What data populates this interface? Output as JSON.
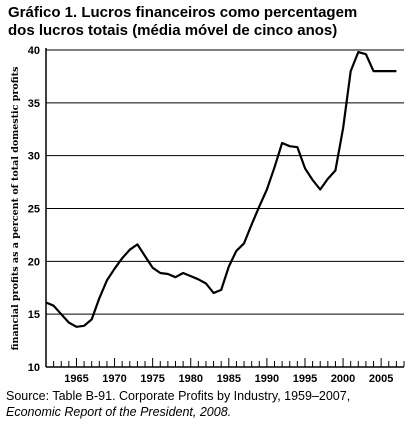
{
  "title_lines": [
    "Gráfico 1.  Lucros financeiros como percentagem",
    "dos lucros totais (média móvel de cinco anos)"
  ],
  "source_lines": [
    "Source: Table B-91. Corporate Profits by Industry, 1959–2007,",
    "Economic Report of the President, 2008."
  ],
  "chart_data": {
    "type": "line",
    "title": "Gráfico 1.  Lucros financeiros como percentagem dos lucros totais (média móvel de cinco anos)",
    "xlabel": "",
    "ylabel": "financial profits as a percent of total domestic profits",
    "xlim": [
      1961,
      2008
    ],
    "ylim": [
      10,
      40
    ],
    "x_ticks": [
      1965,
      1970,
      1975,
      1980,
      1985,
      1990,
      1995,
      2000,
      2005
    ],
    "y_ticks": [
      10,
      15,
      20,
      25,
      30,
      35,
      40
    ],
    "grid": "horizontal",
    "line_color": "#000000",
    "series": [
      {
        "x": [
          1961,
          1962,
          1963,
          1964,
          1965,
          1966,
          1967,
          1968,
          1969,
          1970,
          1971,
          1972,
          1973,
          1974,
          1975,
          1976,
          1977,
          1978,
          1979,
          1980,
          1981,
          1982,
          1983,
          1984,
          1985,
          1986,
          1987,
          1988,
          1989,
          1990,
          1991,
          1992,
          1993,
          1994,
          1995,
          1996,
          1997,
          1998,
          1999,
          2000,
          2001,
          2002,
          2003,
          2004,
          2005,
          2006,
          2007
        ],
        "values": [
          16.1,
          15.8,
          15.0,
          14.2,
          13.8,
          13.9,
          14.5,
          16.5,
          18.2,
          19.3,
          20.3,
          21.1,
          21.6,
          20.5,
          19.4,
          18.9,
          18.8,
          18.5,
          18.9,
          18.6,
          18.3,
          17.9,
          17.0,
          17.3,
          19.5,
          21.0,
          21.7,
          23.5,
          25.2,
          26.8,
          28.9,
          31.2,
          30.9,
          30.8,
          28.8,
          27.7,
          26.8,
          27.8,
          28.6,
          32.6,
          38.0,
          39.8,
          39.6,
          38.0,
          38.0,
          38.0,
          38.0
        ]
      }
    ]
  }
}
